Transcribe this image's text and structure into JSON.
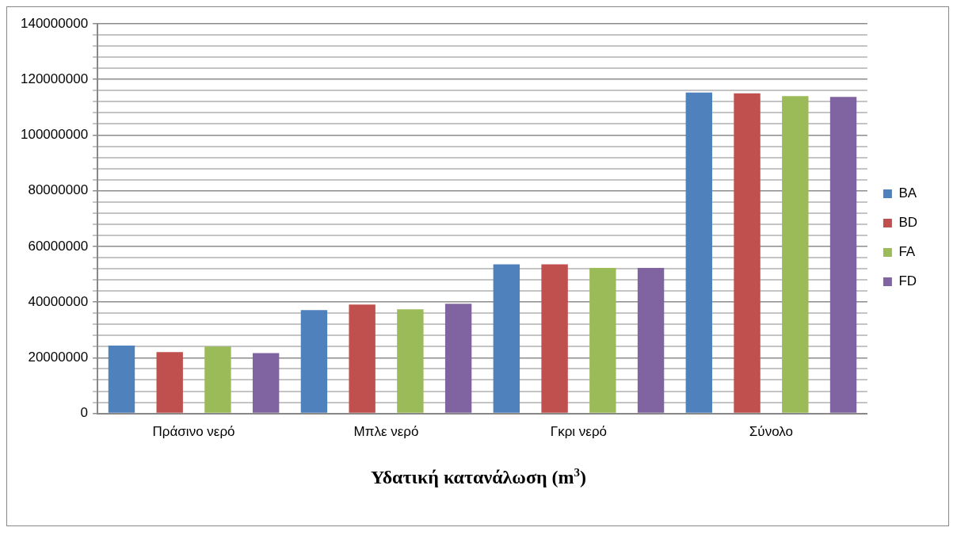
{
  "chart_data": {
    "type": "bar",
    "xlabel": "Υδατική κατανάλωση (m$^{3}$)",
    "categories": [
      "Πράσινο νερό",
      "Μπλε νερό",
      "Γκρι νερό",
      "Σύνολο"
    ],
    "series": [
      {
        "name": "BA",
        "color": "#4f81bd",
        "values": [
          24400000,
          37100000,
          53600000,
          115300000
        ]
      },
      {
        "name": "BD",
        "color": "#c0504d",
        "values": [
          22000000,
          39100000,
          53600000,
          115000000
        ]
      },
      {
        "name": "FA",
        "color": "#9bbb59",
        "values": [
          24000000,
          37400000,
          52300000,
          114000000
        ]
      },
      {
        "name": "FD",
        "color": "#8064a2",
        "values": [
          21700000,
          39400000,
          52300000,
          113700000
        ]
      }
    ],
    "ylim": [
      0,
      140000000
    ],
    "yticks": [
      0,
      {
        "value": 4000000,
        "label": null
      },
      {
        "value": 8000000,
        "label": null
      },
      {
        "value": 12000000,
        "label": null
      },
      {
        "value": 16000000,
        "label": null
      },
      20000000,
      {
        "value": 24000000,
        "label": null
      },
      {
        "value": 28000000,
        "label": null
      },
      {
        "value": 32000000,
        "label": null
      },
      {
        "value": 36000000,
        "label": null
      },
      40000000,
      {
        "value": 44000000,
        "label": null
      },
      {
        "value": 48000000,
        "label": null
      },
      {
        "value": 52000000,
        "label": null
      },
      {
        "value": 56000000,
        "label": null
      },
      60000000,
      {
        "value": 64000000,
        "label": null
      },
      {
        "value": 68000000,
        "label": null
      },
      {
        "value": 72000000,
        "label": null
      },
      {
        "value": 76000000,
        "label": null
      },
      80000000,
      {
        "value": 84000000,
        "label": null
      },
      {
        "value": 88000000,
        "label": null
      },
      {
        "value": 92000000,
        "label": null
      },
      {
        "value": 96000000,
        "label": null
      },
      100000000,
      {
        "value": 104000000,
        "label": null
      },
      {
        "value": 108000000,
        "label": null
      },
      {
        "value": 112000000,
        "label": null
      },
      {
        "value": 116000000,
        "label": null
      },
      120000000,
      {
        "value": 124000000,
        "label": null
      },
      {
        "value": 128000000,
        "label": null
      },
      {
        "value": 132000000,
        "label": null
      },
      {
        "value": 136000000,
        "label": null
      },
      140000000
    ],
    "grid": "y",
    "legend": "right"
  }
}
